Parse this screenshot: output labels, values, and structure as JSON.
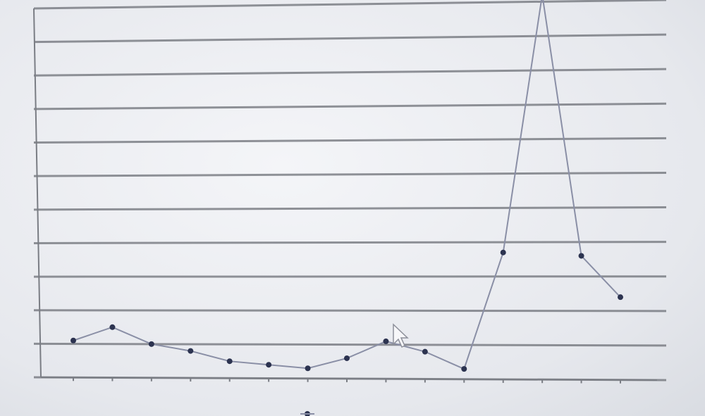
{
  "chart_data": {
    "type": "line",
    "title": "",
    "xlabel": "",
    "ylabel": "",
    "categories": [
      "",
      "",
      "",
      "",
      "",
      "",
      "",
      "",
      "",
      "",
      "",
      "",
      "",
      "",
      ""
    ],
    "series": [
      {
        "name": "",
        "color": "#8a8fa6",
        "marker_color": "#2c3350",
        "values": [
          11,
          15,
          10,
          8,
          5,
          4,
          3,
          6,
          11,
          8,
          3,
          37,
          112,
          36,
          24
        ]
      }
    ],
    "ylim": [
      0,
      110
    ],
    "yticks": [
      0,
      10,
      20,
      30,
      40,
      50,
      60,
      70,
      80,
      90,
      100,
      110
    ],
    "ytick_labels": [
      "",
      "",
      "",
      "",
      "",
      "",
      "",
      "",
      "",
      "",
      "",
      ""
    ],
    "grid": true,
    "legend_position": "bottom"
  }
}
